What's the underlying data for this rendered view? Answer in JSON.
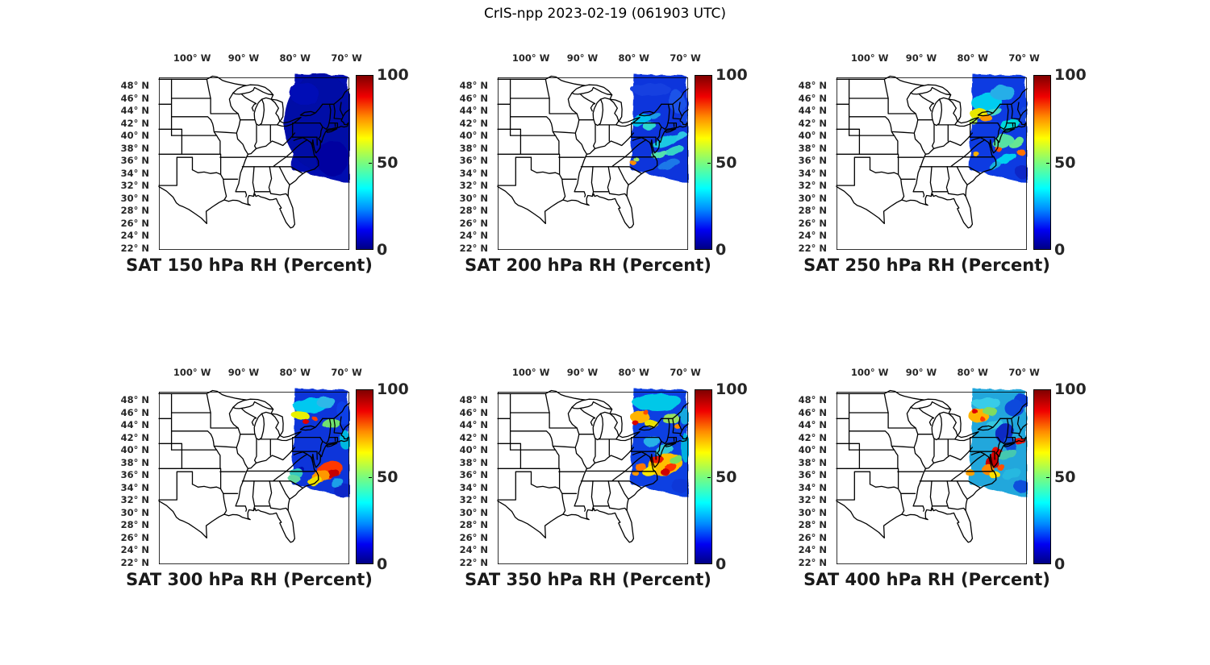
{
  "figure": {
    "title": "CrIS-npp 2023-02-19 (061903 UTC)"
  },
  "axes": {
    "lon_ticks": [
      {
        "label": "100° W",
        "deg": 100
      },
      {
        "label": "90° W",
        "deg": 90
      },
      {
        "label": "80° W",
        "deg": 80
      },
      {
        "label": "70° W",
        "deg": 70
      }
    ],
    "lat_ticks": [
      {
        "label": "48° N",
        "deg": 48
      },
      {
        "label": "46° N",
        "deg": 46
      },
      {
        "label": "44° N",
        "deg": 44
      },
      {
        "label": "42° N",
        "deg": 42
      },
      {
        "label": "40° N",
        "deg": 40
      },
      {
        "label": "38° N",
        "deg": 38
      },
      {
        "label": "36° N",
        "deg": 36
      },
      {
        "label": "34° N",
        "deg": 34
      },
      {
        "label": "32° N",
        "deg": 32
      },
      {
        "label": "30° N",
        "deg": 30
      },
      {
        "label": "28° N",
        "deg": 28
      },
      {
        "label": "26° N",
        "deg": 26
      },
      {
        "label": "24° N",
        "deg": 24
      },
      {
        "label": "22° N",
        "deg": 22
      }
    ]
  },
  "colorbar": {
    "ticks": [
      {
        "label": "100",
        "frac": 1.0
      },
      {
        "label": "50",
        "frac": 0.5
      },
      {
        "label": "0",
        "frac": 0.0
      }
    ],
    "stops": [
      [
        0.0,
        "#000085"
      ],
      [
        0.11,
        "#0000F2"
      ],
      [
        0.23,
        "#008CFF"
      ],
      [
        0.35,
        "#00FFFF"
      ],
      [
        0.5,
        "#7CFC7C"
      ],
      [
        0.64,
        "#FFFF00"
      ],
      [
        0.76,
        "#FF8C00"
      ],
      [
        0.88,
        "#F00000"
      ],
      [
        1.0,
        "#800000"
      ]
    ]
  },
  "panels": [
    {
      "level": "150",
      "title": "SAT 150 hPa RH (Percent)",
      "swath": {
        "base": "#0009B0",
        "blobs": [
          [
            200,
            55,
            45,
            60,
            0,
            "#0007A6"
          ],
          [
            215,
            100,
            20,
            22,
            0,
            "#0005A0"
          ],
          [
            180,
            20,
            18,
            14,
            0,
            "#000AB6"
          ]
        ]
      }
    },
    {
      "level": "200",
      "title": "SAT 200 hPa RH (Percent)",
      "swath": {
        "base": "#0D35DC",
        "blobs": [
          [
            190,
            15,
            25,
            8,
            0,
            "#1340E0"
          ],
          [
            222,
            30,
            10,
            14,
            -10,
            "#1A52E8"
          ],
          [
            231,
            50,
            5,
            12,
            0,
            "#1548E4"
          ],
          [
            178,
            53,
            13,
            7,
            -12,
            "#00C2EE"
          ],
          [
            189,
            61,
            8,
            4,
            -15,
            "#2FD8CF"
          ],
          [
            196,
            48,
            7,
            4,
            -10,
            "#1F9BE8"
          ],
          [
            208,
            79,
            17,
            6,
            -22,
            "#1EC8E2"
          ],
          [
            219,
            91,
            12,
            5,
            -22,
            "#36D2C6"
          ],
          [
            227,
            73,
            8,
            4,
            -25,
            "#2EC6E6"
          ],
          [
            201,
            96,
            10,
            4,
            -15,
            "#53E2AE"
          ],
          [
            168,
            106,
            3.5,
            3,
            0,
            "#FF8C00"
          ],
          [
            171,
            101,
            3.5,
            2.5,
            0,
            "#9FE85F"
          ],
          [
            212,
            108,
            14,
            5,
            -18,
            "#1E78E8"
          ]
        ]
      }
    },
    {
      "level": "250",
      "title": "SAT 250 hPa RH (Percent)",
      "swath": {
        "base": "#0B3BE2",
        "blobs": [
          [
            186,
            30,
            19,
            11,
            -8,
            "#00CCF0"
          ],
          [
            206,
            19,
            16,
            9,
            0,
            "#28AEE8"
          ],
          [
            232,
            45,
            5,
            10,
            0,
            "#1548E0"
          ],
          [
            176,
            45,
            11,
            7,
            0,
            "#E8E800"
          ],
          [
            186,
            51,
            7,
            5,
            0,
            "#FF9800"
          ],
          [
            169,
            53,
            6,
            4,
            0,
            "#A8E850"
          ],
          [
            196,
            42,
            9,
            5,
            -10,
            "#48D8C8"
          ],
          [
            216,
            60,
            12,
            6,
            -20,
            "#00D8D8"
          ],
          [
            223,
            81,
            10,
            6,
            -25,
            "#66E693"
          ],
          [
            206,
            79,
            13,
            8,
            -20,
            "#57E0A3"
          ],
          [
            229,
            93,
            5,
            4,
            0,
            "#FF7000"
          ],
          [
            201,
            89,
            4,
            3,
            0,
            "#FF5000"
          ],
          [
            172,
            94,
            4,
            3,
            0,
            "#FFB000"
          ],
          [
            211,
            101,
            13,
            5,
            -18,
            "#00CFEF"
          ],
          [
            230,
            117,
            9,
            8,
            0,
            "#0A28C8"
          ],
          [
            196,
            109,
            8,
            4,
            -15,
            "#18B0E0"
          ]
        ]
      }
    },
    {
      "level": "300",
      "title": "SAT 300 hPa RH (Percent)",
      "swath": {
        "base": "#0936DA",
        "blobs": [
          [
            188,
            17,
            21,
            10,
            -5,
            "#00C8F0"
          ],
          [
            175,
            29,
            12,
            5,
            8,
            "#E8F000"
          ],
          [
            182,
            37,
            4,
            3,
            0,
            "#DF0000"
          ],
          [
            192,
            32,
            3,
            2.5,
            0,
            "#FF4000"
          ],
          [
            207,
            13,
            12,
            7,
            0,
            "#2FB8E8"
          ],
          [
            213,
            39,
            11,
            6,
            -10,
            "#6FE06F"
          ],
          [
            229,
            27,
            8,
            13,
            0,
            "#1041E8"
          ],
          [
            231,
            60,
            6,
            12,
            0,
            "#00B8E0"
          ],
          [
            212,
            97,
            16,
            11,
            -15,
            "#FF3800"
          ],
          [
            216,
            102,
            8,
            5,
            -15,
            "#C60000"
          ],
          [
            200,
            105,
            12,
            7,
            -15,
            "#FF9800"
          ],
          [
            193,
            110,
            9,
            5,
            -12,
            "#EFE000"
          ],
          [
            176,
            96,
            4,
            3.5,
            0,
            "#0011AF"
          ],
          [
            170,
            100,
            8,
            6,
            0,
            "#35C8C0"
          ],
          [
            168,
            108,
            7,
            5,
            0,
            "#60D8A0"
          ],
          [
            228,
            122,
            12,
            8,
            -10,
            "#0828C8"
          ],
          [
            221,
            113,
            8,
            5,
            -20,
            "#1FA0E8"
          ]
        ]
      }
    },
    {
      "level": "350",
      "title": "SAT 350 hPa RH (Percent)",
      "swath": {
        "base": "#0B40E2",
        "blobs": [
          [
            198,
            13,
            31,
            11,
            0,
            "#00C8E8"
          ],
          [
            176,
            31,
            12,
            8,
            0,
            "#FFB400"
          ],
          [
            170,
            38,
            4,
            3,
            0,
            "#D80000"
          ],
          [
            184,
            26,
            3.5,
            3,
            0,
            "#FF4800"
          ],
          [
            190,
            39,
            8,
            5,
            0,
            "#E8E000"
          ],
          [
            214,
            33,
            10,
            6,
            -10,
            "#97E05F"
          ],
          [
            222,
            42,
            4,
            3,
            0,
            "#FF8800"
          ],
          [
            231,
            30,
            6,
            10,
            0,
            "#17A8E0"
          ],
          [
            192,
            62,
            10,
            5,
            -15,
            "#28B0E8"
          ],
          [
            205,
            72,
            12,
            5,
            -20,
            "#34C8D8"
          ],
          [
            208,
            90,
            21,
            14,
            -15,
            "#FFC000"
          ],
          [
            197,
            84,
            8,
            5,
            -15,
            "#E81800"
          ],
          [
            215,
            94,
            7,
            5,
            -20,
            "#FF3000"
          ],
          [
            208,
            100,
            6,
            4,
            0,
            "#CF0000"
          ],
          [
            221,
            84,
            8,
            5,
            -20,
            "#77E05F"
          ],
          [
            188,
            99,
            9,
            5,
            -12,
            "#FFE800"
          ],
          [
            177,
            93,
            7,
            5,
            0,
            "#FF7800"
          ],
          [
            170,
            100,
            4,
            3.5,
            0,
            "#FF9800"
          ],
          [
            233,
            70,
            5,
            18,
            0,
            "#00B0E0"
          ],
          [
            226,
            116,
            11,
            8,
            -8,
            "#0838D8"
          ]
        ]
      }
    },
    {
      "level": "400",
      "title": "SAT 400 hPa RH (Percent)",
      "swath": {
        "base": "#23A7DC",
        "blobs": [
          [
            230,
            12,
            10,
            8,
            0,
            "#0A40D8"
          ],
          [
            220,
            20,
            12,
            10,
            0,
            "#0C48DC"
          ],
          [
            186,
            14,
            18,
            7,
            0,
            "#39CCE8"
          ],
          [
            176,
            29,
            13,
            9,
            0,
            "#FFB400"
          ],
          [
            171,
            24,
            3.5,
            3,
            0,
            "#E00000"
          ],
          [
            181,
            34,
            3,
            3,
            0,
            "#FF3800"
          ],
          [
            190,
            24,
            9,
            5,
            0,
            "#7FDC5F"
          ],
          [
            196,
            40,
            10,
            6,
            -10,
            "#35C8E0"
          ],
          [
            209,
            52,
            11,
            13,
            15,
            "#0A2CC4"
          ],
          [
            216,
            66,
            7,
            9,
            0,
            "#0E50DC"
          ],
          [
            228,
            62,
            6,
            4,
            -15,
            "#E81000"
          ],
          [
            196,
            72,
            5,
            4,
            0,
            "#E81000"
          ],
          [
            199,
            77,
            8,
            6,
            0,
            "#DF0000"
          ],
          [
            193,
            88,
            8,
            8,
            0,
            "#C60000"
          ],
          [
            188,
            97,
            8,
            6,
            0,
            "#FF8800"
          ],
          [
            196,
            103,
            7,
            4,
            0,
            "#FFE000"
          ],
          [
            204,
            94,
            5,
            4,
            0,
            "#FF5000"
          ],
          [
            211,
            77,
            12,
            5,
            -22,
            "#45C8B0"
          ],
          [
            217,
            102,
            12,
            6,
            -18,
            "#28B8E0"
          ],
          [
            229,
            117,
            10,
            7,
            0,
            "#0E50DC"
          ],
          [
            165,
            100,
            5,
            5,
            0,
            "#FFA000"
          ]
        ]
      }
    }
  ],
  "chart_data": {
    "type": "heatmap",
    "title": "CrIS-npp 2023-02-19 (061903 UTC)",
    "variable": "Relative Humidity (Percent)",
    "panels": [
      "SAT 150 hPa RH (Percent)",
      "SAT 200 hPa RH (Percent)",
      "SAT 250 hPa RH (Percent)",
      "SAT 300 hPa RH (Percent)",
      "SAT 350 hPa RH (Percent)",
      "SAT 400 hPa RH (Percent)"
    ],
    "pressure_levels_hpa": [
      150,
      200,
      250,
      300,
      350,
      400
    ],
    "value_range": [
      0,
      100
    ],
    "colorbar_ticks": [
      0,
      50,
      100
    ],
    "colormap": "jet",
    "lon_ticks_deg_w": [
      100,
      90,
      80,
      70
    ],
    "lat_ticks_deg_n": [
      48,
      46,
      44,
      42,
      40,
      38,
      36,
      34,
      32,
      30,
      28,
      26,
      24,
      22
    ],
    "grid_layout": "2 rows x 3 columns",
    "swath_coverage": "satellite overpass swath over northeastern US and western Atlantic, approx 80W-69W, 30N-49N",
    "summary_by_level": {
      "150": "uniform very low RH (~0-5%) across swath",
      "200": "mostly low RH with cyan patches (~30%) over western NY/PA and offshore streaks",
      "250": "moderate RH patches; yellow/orange (~60-80%) over upstate NY, scattered orange offshore",
      "300": "high RH (red ~90-100%) region offshore near 36-38N, cyan/yellow over NY",
      "350": "broad moist region offshore 34-39N with yellow/orange/red mottling; orange over upstate NY",
      "400": "saturated red blob near VA/NC coast, orange near Lake Ontario, dry blue over New England coast"
    }
  }
}
